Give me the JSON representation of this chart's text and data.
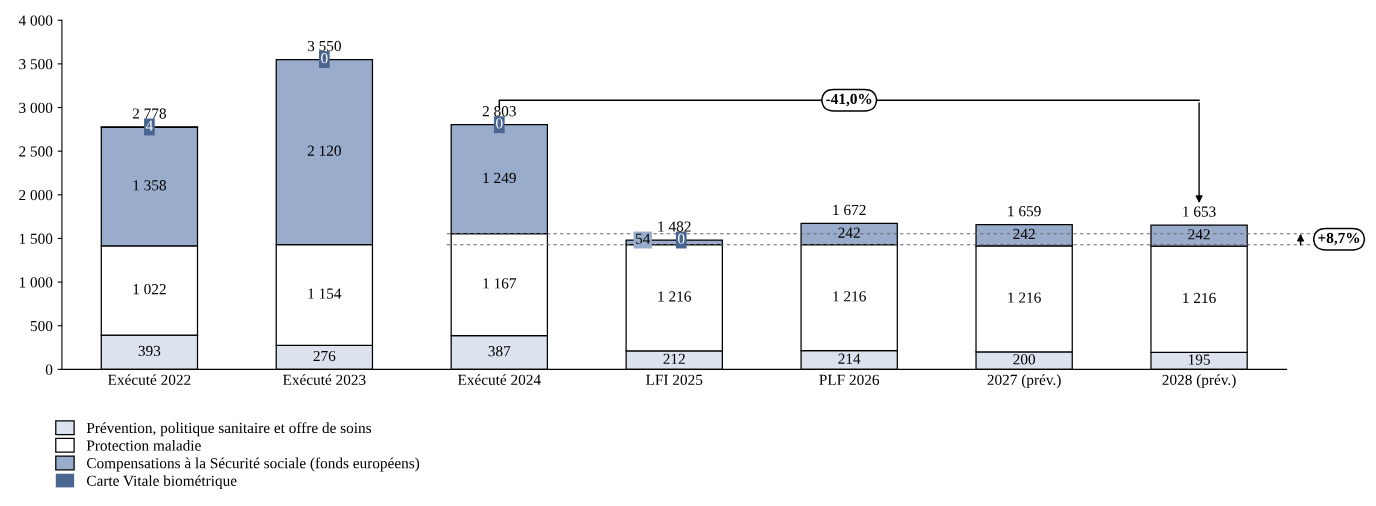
{
  "chart_data": {
    "type": "bar",
    "stacked": true,
    "categories": [
      "Exécuté 2022",
      "Exécuté 2023",
      "Exécuté 2024",
      "LFI 2025",
      "PLF 2026",
      "2027 (prév.)",
      "2028 (prév.)"
    ],
    "series": [
      {
        "name": "Prévention, politique sanitaire et offre de soins",
        "color": "#dde3ee",
        "values": [
          393,
          276,
          387,
          212,
          214,
          200,
          195
        ]
      },
      {
        "name": "Protection maladie",
        "color": "#ffffff",
        "values": [
          1022,
          1154,
          1167,
          1216,
          1216,
          1216,
          1216
        ]
      },
      {
        "name": "Compensations à la Sécurité sociale (fonds européens)",
        "color": "#9aaccc",
        "values": [
          1358,
          2120,
          1249,
          54,
          242,
          242,
          242
        ]
      },
      {
        "name": "Carte Vitale biométrique",
        "color": "#4a6590",
        "values": [
          4,
          0,
          0,
          0,
          null,
          null,
          null
        ]
      }
    ],
    "totals": [
      "2 778",
      "3 550",
      "2 803",
      "1 482",
      "1 672",
      "1 659",
      "1 653"
    ],
    "data_labels": true,
    "ylim": [
      0,
      4000
    ],
    "yticks": [
      {
        "value": 0,
        "label": "0"
      },
      {
        "value": 500,
        "label": "500"
      },
      {
        "value": 1000,
        "label": "1 000"
      },
      {
        "value": 1500,
        "label": "1 500"
      },
      {
        "value": 2000,
        "label": "2 000"
      },
      {
        "value": 2500,
        "label": "2 500"
      },
      {
        "value": 3000,
        "label": "3 000"
      },
      {
        "value": 3500,
        "label": "3 500"
      },
      {
        "value": 4000,
        "label": "4 000"
      }
    ],
    "ref_lines": [
      {
        "axis": "y",
        "value": 1554,
        "line_style": "dashed",
        "color": "#666666"
      },
      {
        "axis": "y",
        "value": 1428,
        "line_style": "dashed",
        "color": "#666666"
      }
    ],
    "annotations": [
      "-41,0%",
      "+8,7%"
    ],
    "legend": "bottom left",
    "grid": false
  }
}
